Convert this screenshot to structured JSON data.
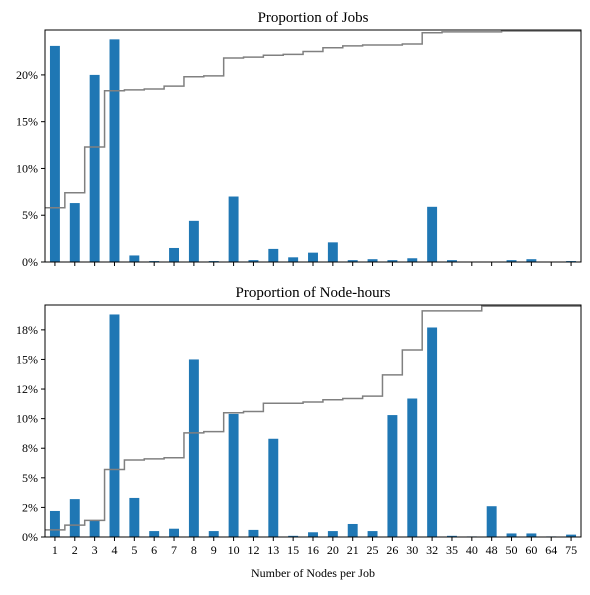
{
  "colors": {
    "bar": "#1f77b4",
    "cumulative": "#808080",
    "axis": "#000000"
  },
  "chart_data": [
    {
      "type": "bar",
      "title": "Proportion of Jobs",
      "xlabel": "",
      "ylabel": "",
      "categories": [
        "1",
        "2",
        "3",
        "4",
        "5",
        "6",
        "7",
        "8",
        "9",
        "10",
        "12",
        "13",
        "15",
        "16",
        "20",
        "21",
        "25",
        "26",
        "30",
        "32",
        "35",
        "40",
        "48",
        "50",
        "60",
        "64",
        "75"
      ],
      "ylim": [
        0,
        0.248
      ],
      "yticks": [
        0,
        0.05,
        0.1,
        0.15,
        0.2
      ],
      "ytick_labels": [
        "0%",
        "5%",
        "10%",
        "15%",
        "20%"
      ],
      "x_tick_labels_shown": false,
      "series": [
        {
          "values": [
            0.231,
            0.063,
            0.2,
            0.238,
            0.007,
            0.001,
            0.015,
            0.044,
            0.001,
            0.07,
            0.002,
            0.014,
            0.005,
            0.01,
            0.021,
            0.002,
            0.003,
            0.002,
            0.004,
            0.059,
            0.002,
            0.0005,
            0.0005,
            0.002,
            0.003,
            0.0005,
            0.001
          ]
        },
        {
          "type": "step",
          "values": [
            0.058,
            0.074,
            0.123,
            0.183,
            0.184,
            0.185,
            0.188,
            0.198,
            0.199,
            0.218,
            0.219,
            0.221,
            0.222,
            0.225,
            0.229,
            0.231,
            0.232,
            0.232,
            0.233,
            0.245,
            0.246,
            0.246,
            0.246,
            0.247,
            0.247,
            0.247,
            0.247
          ]
        }
      ]
    },
    {
      "type": "bar",
      "title": "Proportion of Node-hours",
      "xlabel": "Number of Nodes per Job",
      "ylabel": "",
      "categories": [
        "1",
        "2",
        "3",
        "4",
        "5",
        "6",
        "7",
        "8",
        "9",
        "10",
        "12",
        "13",
        "15",
        "16",
        "20",
        "21",
        "25",
        "26",
        "30",
        "32",
        "35",
        "40",
        "48",
        "50",
        "60",
        "64",
        "75"
      ],
      "ylim": [
        0,
        0.196
      ],
      "yticks": [
        0,
        0.025,
        0.05,
        0.075,
        0.1,
        0.125,
        0.15,
        0.175
      ],
      "ytick_labels": [
        "0%",
        "2%",
        "5%",
        "8%",
        "10%",
        "12%",
        "15%",
        "18%"
      ],
      "x_tick_labels_shown": true,
      "series": [
        {
          "values": [
            0.022,
            0.032,
            0.014,
            0.188,
            0.033,
            0.005,
            0.007,
            0.15,
            0.005,
            0.104,
            0.006,
            0.083,
            0.001,
            0.004,
            0.005,
            0.011,
            0.005,
            0.103,
            0.117,
            0.177,
            0.001,
            0.0005,
            0.026,
            0.003,
            0.003,
            0.0005,
            0.002
          ]
        },
        {
          "type": "step",
          "values": [
            0.006,
            0.01,
            0.014,
            0.057,
            0.065,
            0.066,
            0.067,
            0.088,
            0.089,
            0.105,
            0.106,
            0.113,
            0.113,
            0.114,
            0.116,
            0.117,
            0.119,
            0.137,
            0.158,
            0.191,
            0.191,
            0.191,
            0.195,
            0.195,
            0.195,
            0.195,
            0.195
          ]
        }
      ]
    }
  ]
}
